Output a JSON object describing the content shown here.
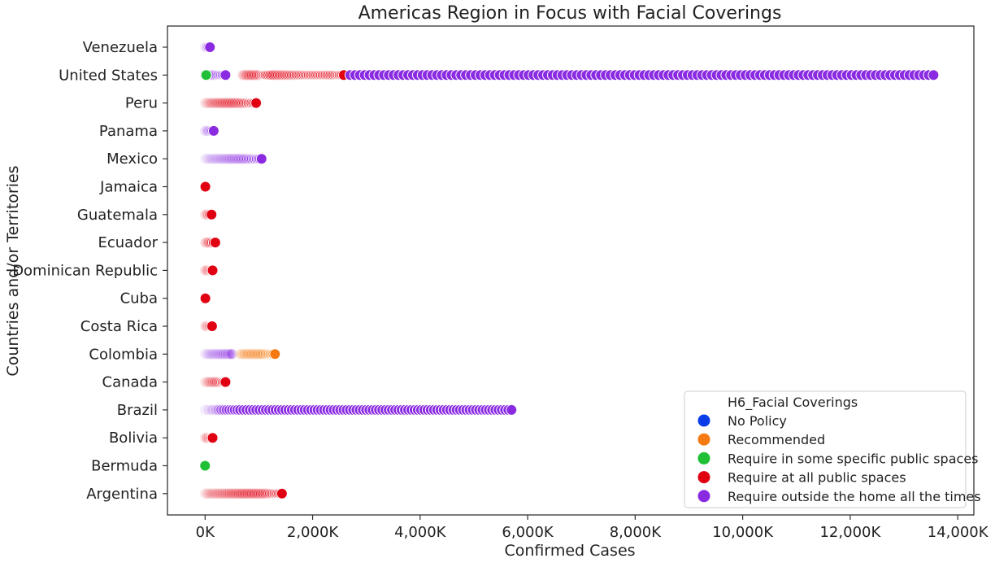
{
  "chart_data": {
    "type": "scatter",
    "title": "Americas Region in Focus with Facial Coverings",
    "xlabel": "Confirmed Cases",
    "ylabel": "Countries and/or Territories",
    "xlim": [
      -700,
      14300
    ],
    "x_ticks": [
      0,
      2000,
      4000,
      6000,
      8000,
      10000,
      12000,
      14000
    ],
    "x_tick_labels": [
      "0K",
      "2,000K",
      "4,000K",
      "6,000K",
      "8,000K",
      "10,000K",
      "12,000K",
      "14,000K"
    ],
    "x_unit": "thousands of confirmed cases",
    "categories": [
      "Venezuela",
      "United States",
      "Peru",
      "Panama",
      "Mexico",
      "Jamaica",
      "Guatemala",
      "Ecuador",
      "Dominican Republic",
      "Cuba",
      "Costa Rica",
      "Colombia",
      "Canada",
      "Brazil",
      "Bolivia",
      "Bermuda",
      "Argentina"
    ],
    "grid": false,
    "legend": {
      "title": "H6_Facial Coverings",
      "placement": "lower-right",
      "entries": [
        {
          "label": "No Policy",
          "color": "#0b3ee8"
        },
        {
          "label": "Recommended",
          "color": "#f57a11"
        },
        {
          "label": "Require in some specific public spaces",
          "color": "#1fbf36"
        },
        {
          "label": "Require at all public spaces",
          "color": "#e00012"
        },
        {
          "label": "Require outside the home all the times",
          "color": "#8a2be2"
        }
      ]
    },
    "series": [
      {
        "category": "Venezuela",
        "policy": 4,
        "points": [
          [
            0,
            0.1
          ],
          [
            40,
            0.4
          ],
          [
            90,
            1.0
          ]
        ]
      },
      {
        "category": "United States",
        "policy": 4,
        "points": [
          [
            0,
            0.1
          ],
          [
            380,
            1.0
          ]
        ]
      },
      {
        "category": "United States",
        "policy": 2,
        "points": [
          [
            20,
            1.0
          ]
        ]
      },
      {
        "category": "United States",
        "policy": 3,
        "points": [
          [
            700,
            0.15
          ],
          [
            900,
            0.3
          ],
          [
            1050,
            0.6
          ],
          [
            1150,
            1.0
          ],
          [
            1300,
            0.5
          ],
          [
            1500,
            0.6
          ],
          [
            1700,
            0.7
          ],
          [
            1900,
            0.8
          ],
          [
            2100,
            0.9
          ],
          [
            2300,
            1.0
          ],
          [
            2450,
            1.0
          ],
          [
            2580,
            1.0
          ]
        ]
      },
      {
        "category": "United States",
        "policy": 4,
        "points": [
          [
            2700,
            1.0
          ],
          [
            13550,
            1.0
          ]
        ],
        "step": 90
      },
      {
        "category": "Peru",
        "policy": 3,
        "points": [
          [
            0,
            0.08
          ],
          [
            300,
            0.2
          ],
          [
            550,
            0.35
          ],
          [
            750,
            0.6
          ],
          [
            950,
            1.0
          ]
        ]
      },
      {
        "category": "Panama",
        "policy": 4,
        "points": [
          [
            0,
            0.1
          ],
          [
            80,
            0.3
          ],
          [
            160,
            1.0
          ]
        ]
      },
      {
        "category": "Mexico",
        "policy": 4,
        "points": [
          [
            0,
            0.06
          ],
          [
            300,
            0.12
          ],
          [
            550,
            0.2
          ],
          [
            750,
            0.5
          ],
          [
            900,
            0.7
          ],
          [
            1050,
            1.0
          ]
        ]
      },
      {
        "category": "Jamaica",
        "policy": 3,
        "points": [
          [
            5,
            1.0
          ]
        ]
      },
      {
        "category": "Guatemala",
        "policy": 3,
        "points": [
          [
            0,
            0.1
          ],
          [
            60,
            0.3
          ],
          [
            120,
            1.0
          ]
        ]
      },
      {
        "category": "Ecuador",
        "policy": 3,
        "points": [
          [
            0,
            0.1
          ],
          [
            100,
            0.3
          ],
          [
            190,
            1.0
          ]
        ]
      },
      {
        "category": "Dominican Republic",
        "policy": 3,
        "points": [
          [
            0,
            0.1
          ],
          [
            70,
            0.3
          ],
          [
            140,
            1.0
          ]
        ]
      },
      {
        "category": "Cuba",
        "policy": 3,
        "points": [
          [
            5,
            1.0
          ]
        ]
      },
      {
        "category": "Costa Rica",
        "policy": 3,
        "points": [
          [
            0,
            0.1
          ],
          [
            60,
            0.3
          ],
          [
            130,
            1.0
          ]
        ]
      },
      {
        "category": "Colombia",
        "policy": 4,
        "points": [
          [
            0,
            0.08
          ],
          [
            250,
            0.15
          ],
          [
            500,
            0.25
          ]
        ]
      },
      {
        "category": "Colombia",
        "policy": 1,
        "points": [
          [
            650,
            0.15
          ],
          [
            900,
            0.25
          ],
          [
            1100,
            0.4
          ],
          [
            1300,
            1.0
          ]
        ]
      },
      {
        "category": "Canada",
        "policy": 3,
        "points": [
          [
            0,
            0.08
          ],
          [
            150,
            0.2
          ],
          [
            250,
            0.4
          ],
          [
            380,
            1.0
          ]
        ]
      },
      {
        "category": "Brazil",
        "policy": 4,
        "points": [
          [
            0,
            0.08
          ],
          [
            200,
            0.2
          ],
          [
            350,
            0.5
          ],
          [
            500,
            0.8
          ],
          [
            650,
            1.0
          ],
          [
            5700,
            1.0
          ]
        ],
        "step": 60
      },
      {
        "category": "Bolivia",
        "policy": 3,
        "points": [
          [
            0,
            0.1
          ],
          [
            70,
            0.3
          ],
          [
            140,
            1.0
          ]
        ]
      },
      {
        "category": "Bermuda",
        "policy": 2,
        "points": [
          [
            0,
            1.0
          ]
        ]
      },
      {
        "category": "Argentina",
        "policy": 3,
        "points": [
          [
            0,
            0.08
          ],
          [
            300,
            0.12
          ],
          [
            600,
            0.2
          ],
          [
            900,
            0.3
          ],
          [
            1150,
            0.5
          ],
          [
            1430,
            1.0
          ]
        ]
      }
    ]
  }
}
